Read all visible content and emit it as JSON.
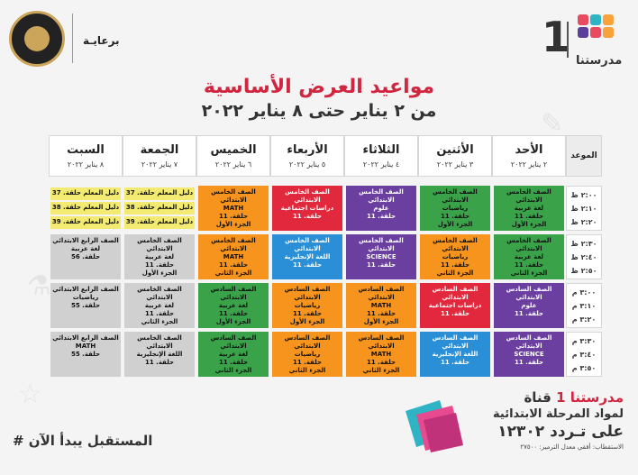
{
  "header": {
    "sponsor_label": "برعايـة",
    "brand_number": "1",
    "brand_name": "مدرستنا",
    "brand_colors": [
      "#e84a5f",
      "#2fb4c6",
      "#f7a23b",
      "#5b3f9a",
      "#e84a5f",
      "#f7a23b"
    ],
    "title": "مواعيد العرض الأساسية",
    "subtitle": "من ٢ يناير حتى ٨ يناير ٢٠٢٢"
  },
  "schedule": {
    "time_header": "الموعد",
    "days": [
      {
        "name": "الأحد",
        "date": "٢ يناير ٢٠٢٢"
      },
      {
        "name": "الأثنين",
        "date": "٣ يناير ٢٠٢٢"
      },
      {
        "name": "الثلاثاء",
        "date": "٤ يناير ٢٠٢٢"
      },
      {
        "name": "الأربعاء",
        "date": "٥ يناير ٢٠٢٢"
      },
      {
        "name": "الخميس",
        "date": "٦ يناير ٢٠٢٢"
      },
      {
        "name": "الجمعة",
        "date": "٧ يناير ٢٠٢٢"
      },
      {
        "name": "السبت",
        "date": "٨ يناير ٢٠٢٢"
      }
    ],
    "time_groups": [
      [
        "٢:٠٠ ظ",
        "٢:١٠ ظ",
        "٢:٢٠ ظ"
      ],
      [
        "٢:٣٠ ظ",
        "٢:٤٠ ظ",
        "٢:٥٠ ظ"
      ],
      [
        "٣:٠٠ م",
        "٣:١٠ م",
        "٣:٢٠ م"
      ],
      [
        "٣:٣٠ م",
        "٣:٤٠ م",
        "٣:٥٠ م"
      ]
    ],
    "colors": {
      "green": "#3aa34a",
      "orange": "#f7941d",
      "red": "#e2283c",
      "purple": "#6a3fa0",
      "blue": "#2a8fd6",
      "gray": "#d0d0d0",
      "yellow": "#f2ea71"
    },
    "blocks": [
      {
        "day": 0,
        "group": 0,
        "color": "green",
        "lines": [
          "الصف الخامس الابتدائي",
          "لغة عربية",
          "حلقة. 11",
          "الجزء الأول"
        ]
      },
      {
        "day": 1,
        "group": 0,
        "color": "green",
        "lines": [
          "الصف الخامس الابتدائي",
          "رياضيات",
          "حلقة. 11",
          "الجزء الأول"
        ]
      },
      {
        "day": 2,
        "group": 0,
        "color": "purple",
        "lines": [
          "الصف الخامس الابتدائي",
          "علوم",
          "حلقة. 11"
        ]
      },
      {
        "day": 3,
        "group": 0,
        "color": "red",
        "lines": [
          "الصف الخامس الابتدائي",
          "دراسات اجتماعية",
          "حلقة. 11"
        ]
      },
      {
        "day": 4,
        "group": 0,
        "color": "orange",
        "lines": [
          "الصف الخامس الابتدائي",
          "MATH",
          "حلقة. 11",
          "الجزء الأول"
        ]
      },
      {
        "day": 5,
        "group": 0,
        "sub": 0,
        "color": "yellow",
        "lines": [
          "دليل المعلم حلقة. 37"
        ]
      },
      {
        "day": 5,
        "group": 0,
        "sub": 1,
        "color": "yellow",
        "lines": [
          "دليل المعلم حلقة. 38"
        ]
      },
      {
        "day": 5,
        "group": 0,
        "sub": 2,
        "color": "yellow",
        "lines": [
          "دليل المعلم حلقة. 39"
        ]
      },
      {
        "day": 6,
        "group": 0,
        "sub": 0,
        "color": "yellow",
        "lines": [
          "دليل المعلم حلقة. 37"
        ]
      },
      {
        "day": 6,
        "group": 0,
        "sub": 1,
        "color": "yellow",
        "lines": [
          "دليل المعلم حلقة. 38"
        ]
      },
      {
        "day": 6,
        "group": 0,
        "sub": 2,
        "color": "yellow",
        "lines": [
          "دليل المعلم حلقة. 39"
        ]
      },
      {
        "day": 0,
        "group": 1,
        "color": "green",
        "lines": [
          "الصف الخامس الابتدائي",
          "لغة عربية",
          "حلقة. 11",
          "الجزء الثاني"
        ]
      },
      {
        "day": 1,
        "group": 1,
        "color": "orange",
        "lines": [
          "الصف الخامس الابتدائي",
          "رياضيات",
          "حلقة. 11",
          "الجزء الثاني"
        ]
      },
      {
        "day": 2,
        "group": 1,
        "color": "purple",
        "lines": [
          "الصف الخامس الابتدائي",
          "SCIENCE",
          "حلقة. 11"
        ]
      },
      {
        "day": 3,
        "group": 1,
        "color": "blue",
        "lines": [
          "الصف الخامس الابتدائي",
          "اللغة الإنجليزية",
          "حلقة. 11"
        ]
      },
      {
        "day": 4,
        "group": 1,
        "color": "orange",
        "lines": [
          "الصف الخامس الابتدائي",
          "MATH",
          "حلقة. 11",
          "الجزء الثاني"
        ]
      },
      {
        "day": 5,
        "group": 1,
        "color": "gray",
        "lines": [
          "الصف الخامس الابتدائي",
          "لغة عربية",
          "حلقة. 11",
          "الجزء الأول"
        ]
      },
      {
        "day": 6,
        "group": 1,
        "color": "gray",
        "lines": [
          "الصف الرابع الابتدائي",
          "لغة عربية",
          "حلقة. 56"
        ]
      },
      {
        "day": 0,
        "group": 2,
        "color": "purple",
        "lines": [
          "الصف السادس الابتدائي",
          "علوم",
          "حلقة. 11"
        ]
      },
      {
        "day": 1,
        "group": 2,
        "color": "red",
        "lines": [
          "الصف السادس الابتدائي",
          "دراسات اجتماعية",
          "حلقة. 11"
        ]
      },
      {
        "day": 2,
        "group": 2,
        "color": "orange",
        "lines": [
          "الصف السادس الابتدائي",
          "MATH",
          "حلقة. 11",
          "الجزء الأول"
        ]
      },
      {
        "day": 3,
        "group": 2,
        "color": "orange",
        "lines": [
          "الصف السادس الابتدائي",
          "رياضيات",
          "حلقة. 11",
          "الجزء الأول"
        ]
      },
      {
        "day": 4,
        "group": 2,
        "color": "green",
        "lines": [
          "الصف السادس الابتدائي",
          "لغة عربية",
          "حلقة. 11",
          "الجزء الأول"
        ]
      },
      {
        "day": 5,
        "group": 2,
        "color": "gray",
        "lines": [
          "الصف الخامس الابتدائي",
          "لغة عربية",
          "حلقة. 11",
          "الجزء الثاني"
        ]
      },
      {
        "day": 6,
        "group": 2,
        "color": "gray",
        "lines": [
          "الصف الرابع الابتدائي",
          "رياضيات",
          "حلقة. 55"
        ]
      },
      {
        "day": 0,
        "group": 3,
        "color": "purple",
        "lines": [
          "الصف السادس الابتدائي",
          "SCIENCE",
          "حلقة. 11"
        ]
      },
      {
        "day": 1,
        "group": 3,
        "color": "blue",
        "lines": [
          "الصف السادس الابتدائي",
          "اللغة الإنجليزية",
          "حلقة. 11"
        ]
      },
      {
        "day": 2,
        "group": 3,
        "color": "orange",
        "lines": [
          "الصف السادس الابتدائي",
          "MATH",
          "حلقة. 11",
          "الجزء الثاني"
        ]
      },
      {
        "day": 3,
        "group": 3,
        "color": "orange",
        "lines": [
          "الصف السادس الابتدائي",
          "رياضيات",
          "حلقة. 11",
          "الجزء الثاني"
        ]
      },
      {
        "day": 4,
        "group": 3,
        "color": "green",
        "lines": [
          "الصف السادس الابتدائي",
          "لغة عربية",
          "حلقة. 11",
          "الجزء الثاني"
        ]
      },
      {
        "day": 5,
        "group": 3,
        "color": "gray",
        "lines": [
          "الصف الخامس الابتدائي",
          "اللغة الإنجليزية",
          "حلقة. 11"
        ]
      },
      {
        "day": 6,
        "group": 3,
        "color": "gray",
        "lines": [
          "الصف الرابع الابتدائي",
          "MATH",
          "حلقة. 55"
        ]
      }
    ]
  },
  "footer": {
    "channel_prefix": "قناة",
    "channel_name": "مدرستنا 1",
    "channel_line2": "لمواد المرحلة الابتدائية",
    "frequency": "على تـردد ١٢٣٠٢",
    "reception_note": "الاستقطاب: أفقي معدل الترميز: ٢٧٥٠٠",
    "slogan": "# المستقبل يبدأ الآن"
  }
}
